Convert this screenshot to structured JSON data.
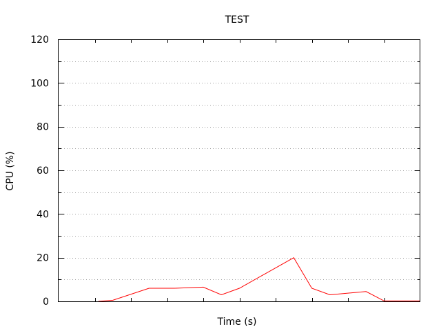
{
  "chart_data": {
    "type": "line",
    "title": "TEST",
    "xlabel": "Time (s)",
    "ylabel": "CPU (%)",
    "xlim": [
      0,
      10
    ],
    "ylim": [
      0,
      120
    ],
    "y_major_ticks": [
      0,
      20,
      40,
      60,
      80,
      100,
      120
    ],
    "y_minor_step": 10,
    "x_ticks": [
      1,
      2,
      3,
      4,
      5,
      6,
      7,
      8,
      9
    ],
    "x_tick_labels_shown": false,
    "grid": "horizontal dotted",
    "series": [
      {
        "color": "#ff0000",
        "x": [
          1.1,
          1.5,
          2.5,
          3.2,
          4.0,
          4.5,
          5.0,
          6.5,
          7.0,
          7.5,
          8.5,
          9.0,
          10.0
        ],
        "y": [
          0,
          0.5,
          6,
          6,
          6.5,
          3,
          6,
          20,
          6,
          3,
          4.5,
          0.2,
          0.2
        ]
      }
    ]
  }
}
